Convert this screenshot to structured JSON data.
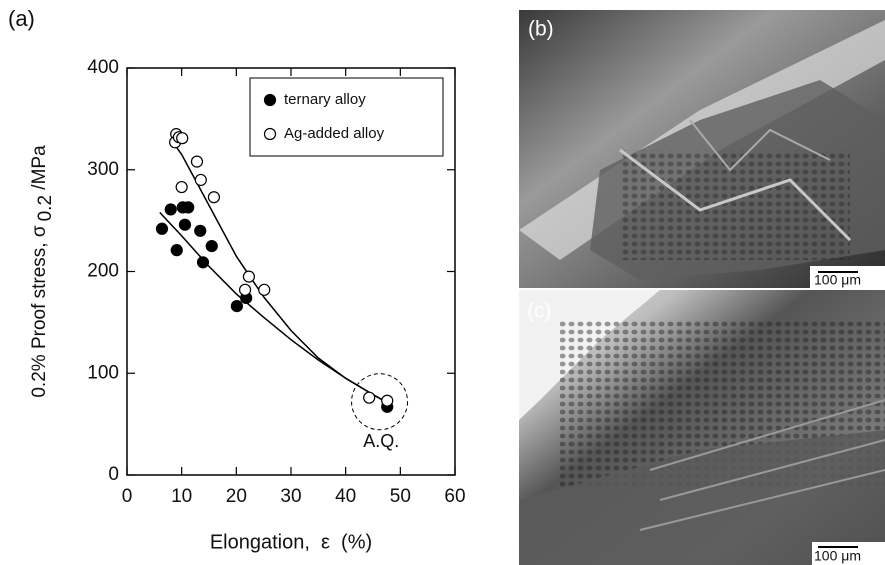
{
  "chart_data": {
    "type": "scatter",
    "panel_label": "(a)",
    "x_label": "Elongation,  ε  (%)",
    "y_label": "0.2% Proof stress, σ",
    "y_label_sub": "0.2",
    "y_label_unit": " /MPa",
    "xlim": [
      0,
      60
    ],
    "xticks": [
      0,
      10,
      20,
      30,
      40,
      50,
      60
    ],
    "ylim": [
      0,
      400
    ],
    "yticks": [
      0,
      100,
      200,
      300,
      400
    ],
    "legend": "top-right",
    "annotation": "A.Q.",
    "series": [
      {
        "name": "ternary alloy",
        "color": "#000000",
        "filled": true,
        "x": [
          6.4,
          8.0,
          9.1,
          10.2,
          11.2,
          10.6,
          13.4,
          13.9,
          15.5,
          20.1,
          21.8,
          47.6
        ],
        "values": [
          242,
          261,
          221,
          263,
          263,
          246,
          240,
          209,
          225,
          166,
          174,
          67
        ],
        "fit_x": [
          6,
          10,
          15,
          20,
          25,
          30,
          35,
          40,
          45,
          48
        ],
        "fit_values": [
          258,
          235,
          205,
          178,
          155,
          133,
          113,
          95,
          79,
          70
        ]
      },
      {
        "name": "Ag-added alloy",
        "color": "#000000",
        "filled": false,
        "x": [
          9.0,
          8.8,
          9.5,
          10.1,
          10.0,
          12.8,
          13.5,
          15.9,
          21.6,
          22.3,
          25.1,
          44.3,
          47.6
        ],
        "values": [
          335,
          327,
          332,
          331,
          283,
          308,
          290,
          273,
          182,
          195,
          182,
          76,
          73
        ],
        "fit_x": [
          8,
          10,
          15,
          20,
          25,
          30,
          35,
          40,
          45,
          48
        ],
        "fit_values": [
          330,
          315,
          265,
          215,
          175,
          142,
          115,
          95,
          79,
          70
        ]
      }
    ]
  },
  "micrographs": [
    {
      "label": "(b)",
      "scale_bar": "100 μm"
    },
    {
      "label": "(c)",
      "scale_bar": "100 μm"
    }
  ]
}
